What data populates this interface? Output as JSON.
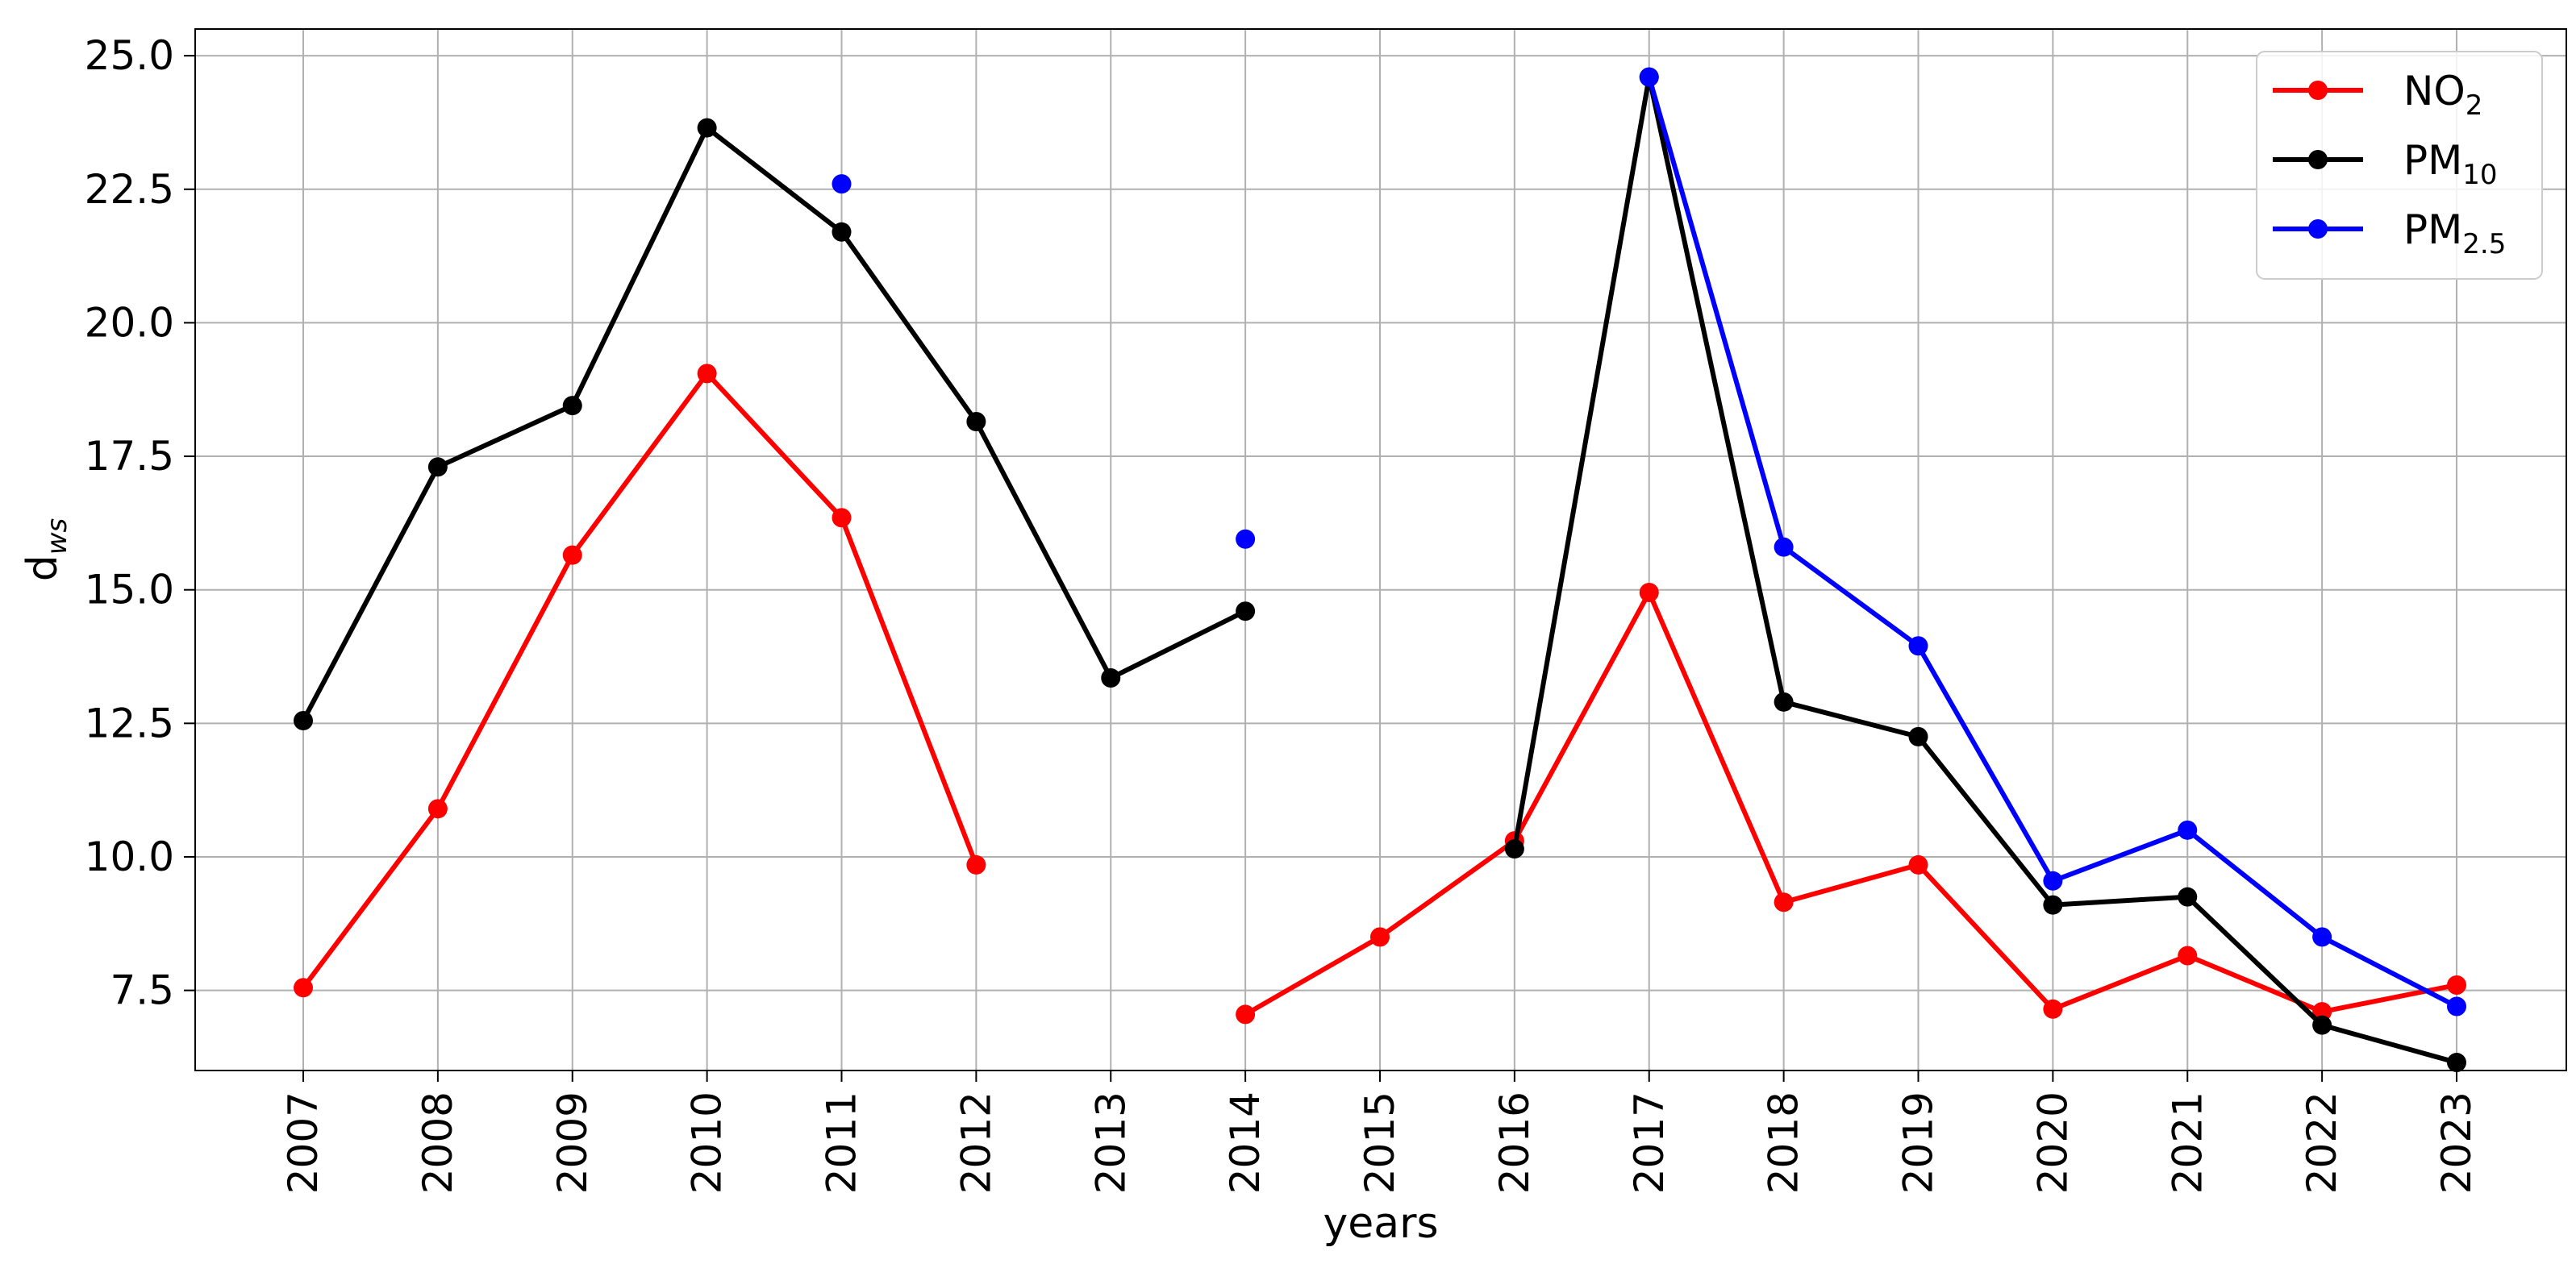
{
  "chart_data": {
    "type": "line",
    "title": "",
    "xlabel": "years",
    "ylabel": "d",
    "ylabel_sub": "ws",
    "categories": [
      "2007",
      "2008",
      "2009",
      "2010",
      "2011",
      "2012",
      "2013",
      "2014",
      "2015",
      "2016",
      "2017",
      "2018",
      "2019",
      "2020",
      "2021",
      "2022",
      "2023"
    ],
    "ylim": [
      6.0,
      25.5
    ],
    "yticks": [
      7.5,
      10.0,
      12.5,
      15.0,
      17.5,
      20.0,
      22.5,
      25.0
    ],
    "ytick_labels": [
      "7.5",
      "10.0",
      "12.5",
      "15.0",
      "17.5",
      "20.0",
      "22.5",
      "25.0"
    ],
    "grid": true,
    "legend_position": "top-right",
    "series": [
      {
        "name": "NO",
        "name_sub": "2",
        "color": "#ff0000",
        "values": [
          7.55,
          10.9,
          15.65,
          19.05,
          16.35,
          9.85,
          null,
          7.05,
          8.5,
          10.3,
          14.95,
          9.15,
          9.85,
          7.15,
          8.15,
          7.1,
          7.6
        ]
      },
      {
        "name": "PM",
        "name_sub": "10",
        "color": "#000000",
        "values": [
          12.55,
          17.3,
          18.45,
          23.65,
          21.7,
          18.15,
          13.35,
          14.6,
          null,
          10.15,
          24.6,
          12.9,
          12.25,
          9.1,
          9.25,
          6.85,
          6.15
        ]
      },
      {
        "name": "PM",
        "name_sub": "2.5",
        "color": "#0000ff",
        "values": [
          null,
          null,
          null,
          null,
          22.6,
          null,
          null,
          15.95,
          null,
          null,
          24.6,
          15.8,
          13.95,
          9.55,
          10.5,
          8.5,
          7.2
        ]
      }
    ]
  }
}
